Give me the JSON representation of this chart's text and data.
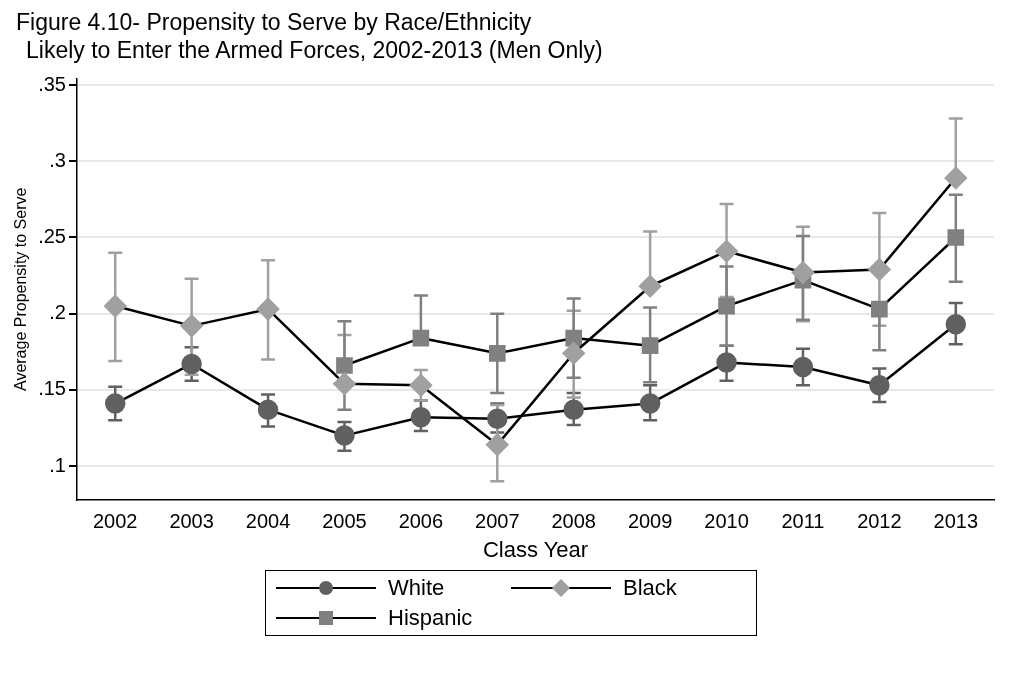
{
  "chart_data": {
    "type": "line",
    "title": "Figure 4.10- Propensity to Serve by Race/Ethnicity",
    "subtitle": "Likely to Enter the Armed Forces, 2002-2013 (Men Only)",
    "xlabel": "Class Year",
    "ylabel": "Average Propensity to Serve",
    "categories": [
      "2002",
      "2003",
      "2004",
      "2005",
      "2006",
      "2007",
      "2008",
      "2009",
      "2010",
      "2011",
      "2012",
      "2013"
    ],
    "ylim": [
      0.078,
      0.354
    ],
    "yticks": [
      {
        "value": 0.1,
        "label": ".1"
      },
      {
        "value": 0.15,
        "label": ".15"
      },
      {
        "value": 0.2,
        "label": ".2"
      },
      {
        "value": 0.25,
        "label": ".25"
      },
      {
        "value": 0.3,
        "label": ".3"
      },
      {
        "value": 0.35,
        "label": ".35"
      }
    ],
    "grid": "y",
    "legend": "bottom",
    "line_style": "solid",
    "series": [
      {
        "name": "White",
        "color": "#606060",
        "marker": "circle",
        "values": [
          0.141,
          0.167,
          0.137,
          0.12,
          0.132,
          0.131,
          0.137,
          0.141,
          0.168,
          0.165,
          0.153,
          0.193
        ],
        "errors": [
          [
            0.13,
            0.152
          ],
          [
            0.156,
            0.178
          ],
          [
            0.126,
            0.147
          ],
          [
            0.11,
            0.129
          ],
          [
            0.123,
            0.143
          ],
          [
            0.122,
            0.141
          ],
          [
            0.127,
            0.148
          ],
          [
            0.13,
            0.153
          ],
          [
            0.156,
            0.179
          ],
          [
            0.153,
            0.177
          ],
          [
            0.142,
            0.164
          ],
          [
            0.18,
            0.207
          ]
        ]
      },
      {
        "name": "Black",
        "color": "#a0a0a0",
        "marker": "diamond",
        "values": [
          0.205,
          0.192,
          0.203,
          0.154,
          0.153,
          0.114,
          0.174,
          0.218,
          0.241,
          0.227,
          0.229,
          0.289
        ],
        "errors": [
          [
            0.169,
            0.24
          ],
          [
            0.16,
            0.223
          ],
          [
            0.17,
            0.235
          ],
          [
            0.154,
            0.186
          ],
          [
            0.143,
            0.163
          ],
          [
            0.09,
            0.14
          ],
          [
            0.145,
            0.202
          ],
          [
            0.218,
            0.254
          ],
          [
            0.211,
            0.272
          ],
          [
            0.195,
            0.257
          ],
          [
            0.192,
            0.266
          ],
          [
            0.289,
            0.328
          ]
        ]
      },
      {
        "name": "Hispanic",
        "color": "#808080",
        "marker": "square",
        "values": [
          null,
          null,
          null,
          0.166,
          0.184,
          0.174,
          0.184,
          0.179,
          0.205,
          0.222,
          0.203,
          0.25
        ],
        "errors": [
          null,
          null,
          null,
          [
            0.137,
            0.195
          ],
          [
            0.184,
            0.212
          ],
          [
            0.148,
            0.2
          ],
          [
            0.158,
            0.21
          ],
          [
            0.155,
            0.204
          ],
          [
            0.179,
            0.231
          ],
          [
            0.196,
            0.251
          ],
          [
            0.176,
            0.203
          ],
          [
            0.221,
            0.278
          ]
        ]
      }
    ]
  }
}
